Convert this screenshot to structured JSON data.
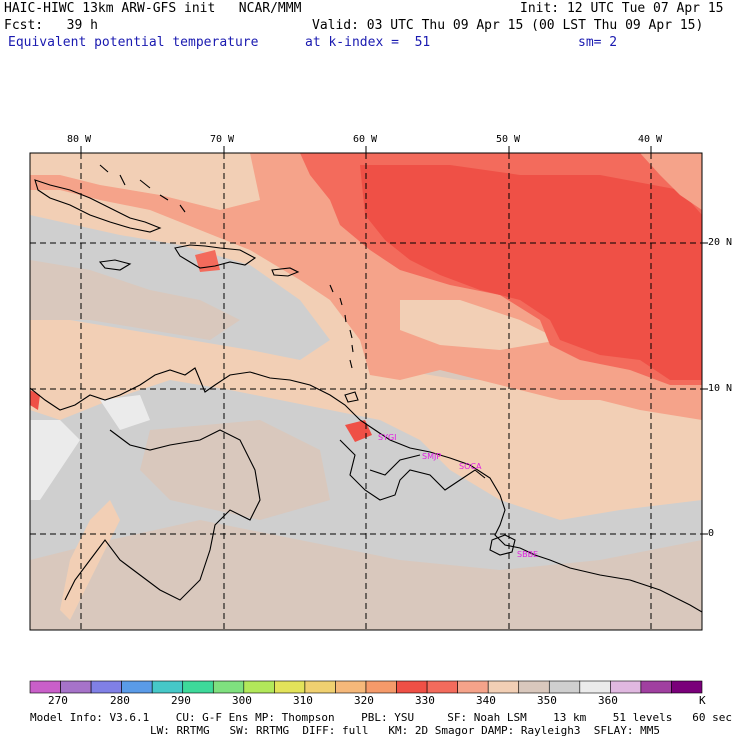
{
  "header": {
    "model_title": "HAIC-HIWC 13km ARW-GFS init   NCAR/MMM",
    "init": "Init: 12 UTC Tue 07 Apr 15",
    "fcst": "Fcst:   39 h",
    "valid": "Valid: 03 UTC Thu 09 Apr 15 (00 LST Thu 09 Apr 15)",
    "field": "Equivalent potential temperature",
    "level": "at k-index =  51",
    "smoothing": "sm= 2"
  },
  "map": {
    "lon_labels": [
      "80 W",
      "70 W",
      "60 W",
      "50 W",
      "40 W"
    ],
    "lat_labels": [
      "20 N",
      "10 N",
      "0"
    ],
    "stations": [
      "SYGI",
      "SMJP",
      "SOCA",
      "SBBE"
    ]
  },
  "colorbar": {
    "unit": "K",
    "labels": [
      "270",
      "280",
      "290",
      "300",
      "310",
      "320",
      "330",
      "340",
      "350",
      "360"
    ],
    "colors": [
      "#c95fc9",
      "#a673c9",
      "#8080e6",
      "#5a9be8",
      "#46c8c8",
      "#3ed99a",
      "#7fe07f",
      "#b2e85a",
      "#e3e35a",
      "#f0d070",
      "#f5b87a",
      "#f59a6a",
      "#ef5046",
      "#f36b5c",
      "#f5a38a",
      "#f2cfb5",
      "#d9c8bd",
      "#cfcfcf",
      "#ebebeb",
      "#e0b8e0",
      "#a040a0",
      "#7a007a"
    ]
  },
  "field_colors": {
    "gray": "#cfcfcf",
    "taupe": "#d9c8bd",
    "peach": "#f2cfb5",
    "salmon": "#f5a38a",
    "coral": "#f36b5c",
    "red": "#ef5046",
    "light": "#ebebeb"
  },
  "footer": {
    "line1": "Model Info: V3.6.1    CU: G-F Ens MP: Thompson    PBL: YSU     SF: Noah LSM    13 km    51 levels   60 sec",
    "line2": "LW: RRTMG   SW: RRTMG  DIFF: full   KM: 2D Smagor DAMP: Rayleigh3  SFLAY: MM5"
  }
}
